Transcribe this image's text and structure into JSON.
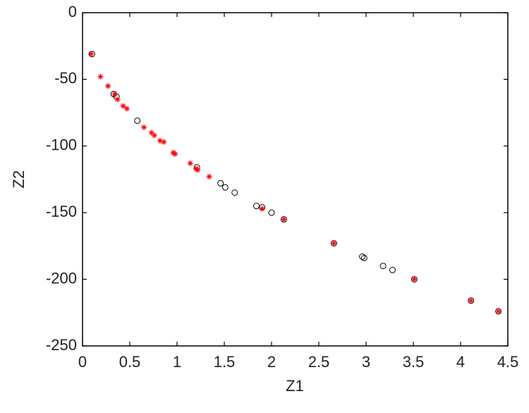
{
  "chart_data": {
    "type": "scatter",
    "xlabel": "Z1",
    "ylabel": "Z2",
    "xlim": [
      0,
      4.5
    ],
    "ylim": [
      -250,
      0
    ],
    "xticks": [
      0,
      0.5,
      1,
      1.5,
      2,
      2.5,
      3,
      3.5,
      4,
      4.5
    ],
    "yticks": [
      0,
      -50,
      -100,
      -150,
      -200,
      -250
    ],
    "series": [
      {
        "color": "#000000",
        "marker": "circle",
        "x": [
          0.1,
          0.33,
          0.36,
          0.58,
          1.21,
          1.46,
          1.51,
          1.61,
          1.84,
          1.9,
          2.0,
          2.13,
          2.66,
          2.96,
          2.98,
          3.18,
          3.28,
          3.51,
          4.11,
          4.4
        ],
        "values": [
          -31,
          -61,
          -63,
          -81,
          -116,
          -128,
          -131,
          -135,
          -145,
          -146,
          -150,
          -155,
          -173,
          -183,
          -184,
          -190,
          -193,
          -200,
          -216,
          -224
        ]
      },
      {
        "color": "#ff0000",
        "marker": "star",
        "x": [
          0.09,
          0.19,
          0.27,
          0.34,
          0.37,
          0.43,
          0.47,
          0.65,
          0.73,
          0.76,
          0.82,
          0.86,
          0.96,
          0.98,
          1.14,
          1.2,
          1.22,
          1.34,
          1.9,
          2.13,
          2.66,
          3.51,
          4.11,
          4.4
        ],
        "values": [
          -31,
          -48,
          -55,
          -61,
          -65,
          -70,
          -72,
          -86,
          -90,
          -92,
          -96,
          -97,
          -105,
          -106,
          -113,
          -117,
          -118,
          -123,
          -147,
          -155,
          -173,
          -200,
          -216,
          -224
        ]
      }
    ]
  }
}
